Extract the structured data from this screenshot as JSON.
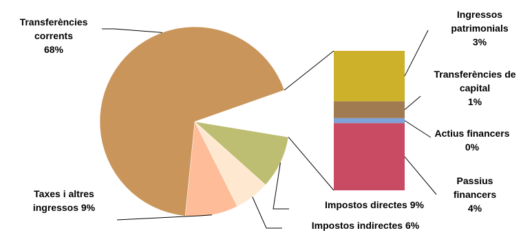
{
  "chart_data": {
    "type": "bar-of-pie",
    "pie": [
      {
        "name": "Transferències corrents",
        "lines": [
          "Transferències",
          "corrents",
          "68%"
        ],
        "value": 68,
        "color": "#C9955A"
      },
      {
        "name": "Impostos directes",
        "lines": [
          "Impostos directes 9%"
        ],
        "value": 9,
        "color": "#BEBE72"
      },
      {
        "name": "Impostos indirectes",
        "lines": [
          "Impostos indirectes 6%"
        ],
        "value": 6,
        "color": "#FFE8D0"
      },
      {
        "name": "Taxes i altres ingressos",
        "lines": [
          "Taxes i altres",
          "ingressos  9%"
        ],
        "value": 9,
        "color": "#FFBC98"
      }
    ],
    "other_slice": {
      "value": 8
    },
    "bar": [
      {
        "name": "Passius financers",
        "lines": [
          "Passius",
          "financers",
          "4%"
        ],
        "value": 4,
        "color": "#C94A63"
      },
      {
        "name": "Actius financers",
        "lines": [
          "Actius financers",
          "0%"
        ],
        "value": 0.3,
        "color": "#7FA2D8"
      },
      {
        "name": "Transferències de capital",
        "lines": [
          "Transferències de",
          "capital",
          "1%"
        ],
        "value": 1,
        "color": "#A07A50"
      },
      {
        "name": "Ingressos patrimonials",
        "lines": [
          "Ingressos",
          "patrimonials",
          "3%"
        ],
        "value": 3,
        "color": "#CDB12A"
      }
    ],
    "colors": {
      "background": "#FFFFFF",
      "text": "#000000"
    }
  }
}
